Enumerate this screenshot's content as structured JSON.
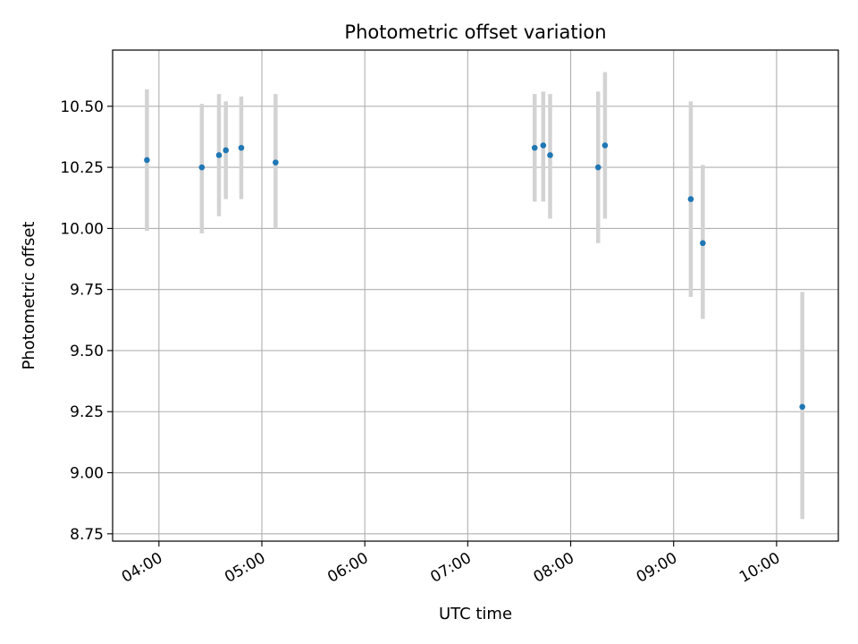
{
  "chart_data": {
    "type": "scatter",
    "title": "Photometric offset variation",
    "xlabel": "UTC time",
    "ylabel": "Photometric offset",
    "x_tick_labels": [
      "04:00",
      "05:00",
      "06:00",
      "07:00",
      "08:00",
      "09:00",
      "10:00"
    ],
    "y_tick_labels": [
      "8.75",
      "9.00",
      "9.25",
      "9.50",
      "9.75",
      "10.00",
      "10.25",
      "10.50"
    ],
    "y_ticks": [
      8.75,
      9.0,
      9.25,
      9.5,
      9.75,
      10.0,
      10.25,
      10.5
    ],
    "xlim": [
      "03:33",
      "10:36"
    ],
    "ylim": [
      8.72,
      10.73
    ],
    "grid": true,
    "colors": {
      "marker": "#1f77b4",
      "errorbar": "#d3d3d3",
      "grid": "#b0b0b0",
      "axis": "#000000"
    },
    "points": [
      {
        "x": "03:53",
        "y": 10.28,
        "ylo": 9.99,
        "yhi": 10.57
      },
      {
        "x": "04:25",
        "y": 10.25,
        "ylo": 9.98,
        "yhi": 10.51
      },
      {
        "x": "04:35",
        "y": 10.3,
        "ylo": 10.05,
        "yhi": 10.55
      },
      {
        "x": "04:39",
        "y": 10.32,
        "ylo": 10.12,
        "yhi": 10.52
      },
      {
        "x": "04:48",
        "y": 10.33,
        "ylo": 10.12,
        "yhi": 10.54
      },
      {
        "x": "05:08",
        "y": 10.27,
        "ylo": 10.0,
        "yhi": 10.55
      },
      {
        "x": "07:39",
        "y": 10.33,
        "ylo": 10.11,
        "yhi": 10.55
      },
      {
        "x": "07:44",
        "y": 10.34,
        "ylo": 10.11,
        "yhi": 10.56
      },
      {
        "x": "07:48",
        "y": 10.3,
        "ylo": 10.04,
        "yhi": 10.55
      },
      {
        "x": "08:16",
        "y": 10.25,
        "ylo": 9.94,
        "yhi": 10.56
      },
      {
        "x": "08:20",
        "y": 10.34,
        "ylo": 10.04,
        "yhi": 10.64
      },
      {
        "x": "09:10",
        "y": 10.12,
        "ylo": 9.72,
        "yhi": 10.52
      },
      {
        "x": "09:17",
        "y": 9.94,
        "ylo": 9.63,
        "yhi": 10.26
      },
      {
        "x": "10:15",
        "y": 9.27,
        "ylo": 8.81,
        "yhi": 9.74
      }
    ]
  }
}
